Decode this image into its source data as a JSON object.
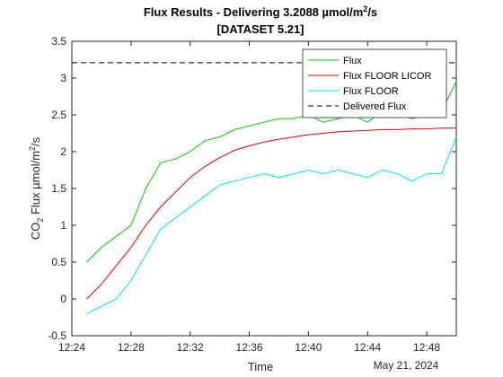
{
  "chart_data": {
    "type": "line",
    "title_prefix": "Flux Results - Delivering 3.2088 µmol/m",
    "title_sup": "2",
    "title_suffix": "/s",
    "subtitle": "[DATASET 5.21]",
    "xlabel": "Time",
    "ylabel_main": "CO",
    "ylabel_sub": "2",
    "ylabel_mid": " Flux µmol/m",
    "ylabel_sup": "2",
    "ylabel_end": "/s",
    "date_label": "May 21, 2024",
    "x_unit": "minutes (clock time)",
    "xlim": [
      "12:24",
      "12:50"
    ],
    "ylim": [
      -0.5,
      3.5
    ],
    "x_ticks": [
      "12:24",
      "12:28",
      "12:32",
      "12:36",
      "12:40",
      "12:44",
      "12:48"
    ],
    "y_ticks": [
      "-0.5",
      "0",
      "0.5",
      "1",
      "1.5",
      "2",
      "2.5",
      "3",
      "3.5"
    ],
    "legend_position": "top-right",
    "grid": false,
    "x": [
      "12:25",
      "12:26",
      "12:27",
      "12:28",
      "12:29",
      "12:30",
      "12:31",
      "12:32",
      "12:33",
      "12:34",
      "12:35",
      "12:36",
      "12:37",
      "12:38",
      "12:39",
      "12:40",
      "12:41",
      "12:42",
      "12:43",
      "12:44",
      "12:45",
      "12:46",
      "12:47",
      "12:48",
      "12:49",
      "12:50"
    ],
    "series": [
      {
        "name": "Flux",
        "color": "#00cc00",
        "values": [
          0.5,
          0.7,
          0.85,
          1.0,
          1.5,
          1.85,
          1.9,
          2.0,
          2.15,
          2.2,
          2.3,
          2.35,
          2.4,
          2.45,
          2.45,
          2.5,
          2.4,
          2.45,
          2.5,
          2.4,
          2.55,
          2.5,
          2.45,
          2.5,
          2.55,
          2.95
        ]
      },
      {
        "name": "Flux FLOOR LICOR",
        "color": "#e60000",
        "values": [
          0.0,
          0.2,
          0.45,
          0.7,
          1.0,
          1.25,
          1.45,
          1.65,
          1.8,
          1.92,
          2.02,
          2.08,
          2.13,
          2.17,
          2.2,
          2.23,
          2.25,
          2.27,
          2.28,
          2.29,
          2.3,
          2.3,
          2.31,
          2.31,
          2.32,
          2.32
        ]
      },
      {
        "name": "Flux FLOOR",
        "color": "#00e5ee",
        "values": [
          -0.2,
          -0.1,
          0.0,
          0.25,
          0.6,
          0.95,
          1.1,
          1.25,
          1.4,
          1.55,
          1.6,
          1.65,
          1.7,
          1.65,
          1.7,
          1.75,
          1.7,
          1.75,
          1.7,
          1.65,
          1.75,
          1.7,
          1.6,
          1.7,
          1.7,
          2.2
        ]
      },
      {
        "name": "Delivered Flux",
        "color": "#000000",
        "dashed": true,
        "values": [
          3.2088,
          3.2088,
          3.2088,
          3.2088,
          3.2088,
          3.2088,
          3.2088,
          3.2088,
          3.2088,
          3.2088,
          3.2088,
          3.2088,
          3.2088,
          3.2088,
          3.2088,
          3.2088,
          3.2088,
          3.2088,
          3.2088,
          3.2088,
          3.2088,
          3.2088,
          3.2088,
          3.2088,
          3.2088,
          3.2088
        ]
      }
    ]
  }
}
